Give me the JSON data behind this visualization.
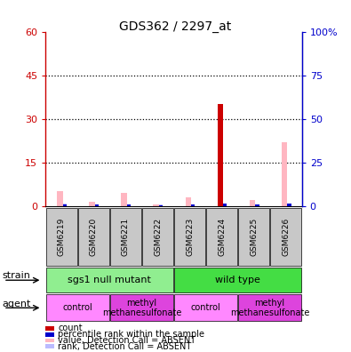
{
  "title": "GDS362 / 2297_at",
  "samples": [
    "GSM6219",
    "GSM6220",
    "GSM6221",
    "GSM6222",
    "GSM6223",
    "GSM6224",
    "GSM6225",
    "GSM6226"
  ],
  "count_values": [
    0,
    0,
    0,
    0,
    0,
    35,
    0,
    0
  ],
  "percentile_rank_values": [
    1.0,
    1.0,
    1.0,
    0.5,
    1.0,
    1.5,
    1.0,
    1.5
  ],
  "value_absent": [
    5.0,
    1.5,
    4.5,
    0.5,
    3.0,
    0,
    2.0,
    22.0
  ],
  "rank_absent": [
    1.5,
    0.8,
    0.8,
    0.8,
    0.8,
    0,
    0.8,
    1.5
  ],
  "strain_groups": [
    {
      "label": "sgs1 null mutant",
      "start": 0,
      "end": 4,
      "color": "#90EE90"
    },
    {
      "label": "wild type",
      "start": 4,
      "end": 8,
      "color": "#44DD44"
    }
  ],
  "agent_groups": [
    {
      "label": "control",
      "start": 0,
      "end": 2,
      "color": "#FF88FF"
    },
    {
      "label": "methyl\nmethanesulfonate",
      "start": 2,
      "end": 4,
      "color": "#DD44DD"
    },
    {
      "label": "control",
      "start": 4,
      "end": 6,
      "color": "#FF88FF"
    },
    {
      "label": "methyl\nmethanesulfonate",
      "start": 6,
      "end": 8,
      "color": "#DD44DD"
    }
  ],
  "ylim_left": [
    0,
    60
  ],
  "ylim_right": [
    0,
    100
  ],
  "yticks_left": [
    0,
    15,
    30,
    45,
    60
  ],
  "yticks_right": [
    0,
    25,
    50,
    75,
    100
  ],
  "ytick_labels_left": [
    "0",
    "15",
    "30",
    "45",
    "60"
  ],
  "ytick_labels_right": [
    "0",
    "25",
    "50",
    "75",
    "100%"
  ],
  "color_count": "#CC0000",
  "color_rank": "#0000CC",
  "color_value_absent": "#FFB6C1",
  "color_rank_absent": "#BBBBFF",
  "grid_color": "#000000",
  "plot_bg": "#FFFFFF",
  "box_bg": "#C8C8C8"
}
